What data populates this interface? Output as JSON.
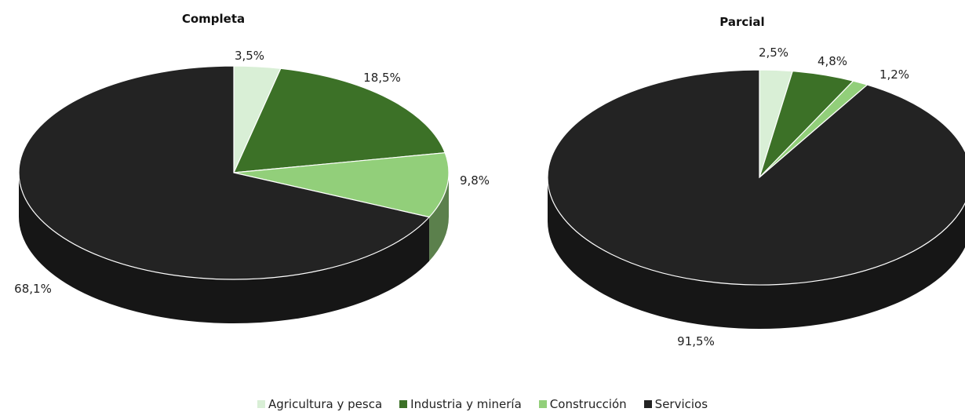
{
  "chart_data": [
    {
      "type": "pie",
      "title": "Completa",
      "categories": [
        "Agricultura y pesca",
        "Industria y minería",
        "Construcción",
        "Servicios"
      ],
      "values": [
        3.5,
        18.5,
        9.8,
        68.1
      ],
      "labels": [
        "3,5%",
        "18,5%",
        "9,8%",
        "68,1%"
      ],
      "style": "3d"
    },
    {
      "type": "pie",
      "title": "Parcial",
      "categories": [
        "Agricultura y pesca",
        "Industria y minería",
        "Construcción",
        "Servicios"
      ],
      "values": [
        2.5,
        4.8,
        1.2,
        91.5
      ],
      "labels": [
        "2,5%",
        "4,8%",
        "1,2%",
        "91,5%"
      ],
      "style": "3d"
    }
  ],
  "legend": {
    "placement": "bottom",
    "items": [
      {
        "label": "Agricultura y pesca",
        "color": "#d9efd6"
      },
      {
        "label": "Industria y minería",
        "color": "#3c7127"
      },
      {
        "label": "Construcción",
        "color": "#92cf7a"
      },
      {
        "label": "Servicios",
        "color": "#232323"
      }
    ]
  }
}
